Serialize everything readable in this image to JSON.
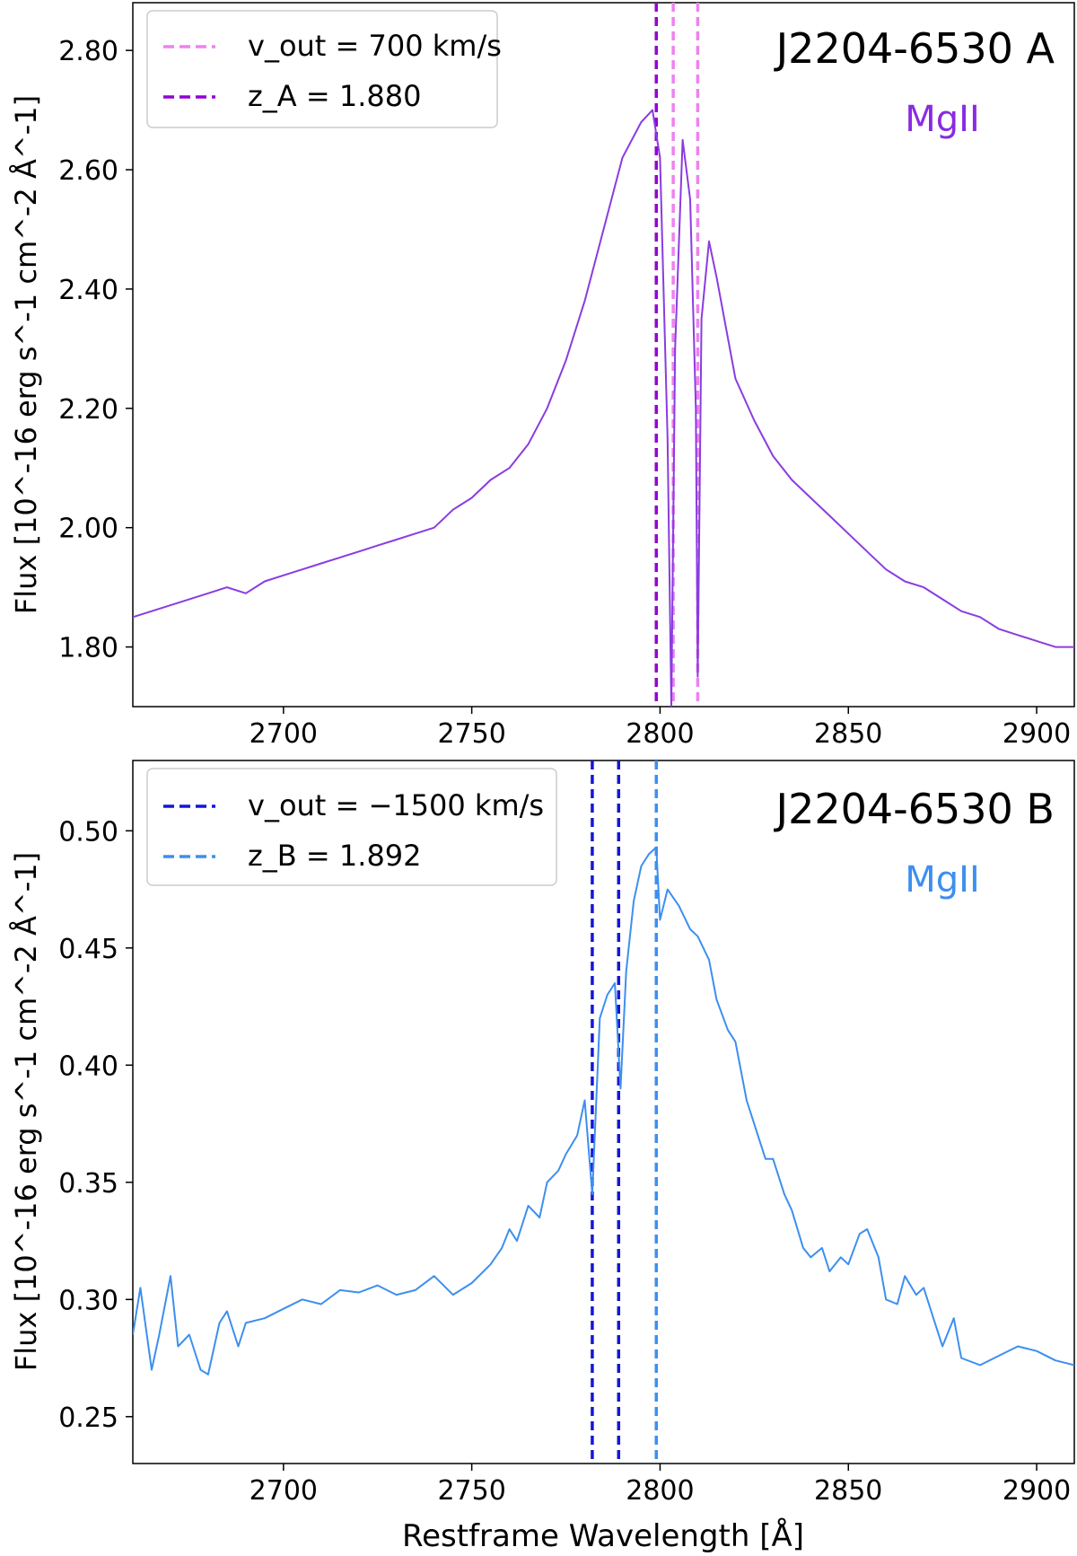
{
  "chart_data": [
    {
      "type": "line",
      "title": "J2204-6530 A",
      "annotation": "MgII",
      "ylabel": "Flux [10^-16 erg s^-1 cm^-2 Å^-1]",
      "xlabel": "",
      "xlim": [
        2660,
        2910
      ],
      "ylim": [
        1.7,
        2.88
      ],
      "x_ticks": [
        2700,
        2750,
        2800,
        2850,
        2900
      ],
      "x_tick_labels": [
        "2700",
        "2750",
        "2800",
        "2850",
        "2900"
      ],
      "y_ticks": [
        1.8,
        2.0,
        2.2,
        2.4,
        2.6,
        2.8
      ],
      "y_tick_labels": [
        "1.80",
        "2.00",
        "2.20",
        "2.40",
        "2.60",
        "2.80"
      ],
      "legend_position": "top-left",
      "colors": {
        "spectrum": "#8a3ce0",
        "annotation": "#8a2be2",
        "vout": "#ee82ee",
        "z": "#9400d3"
      },
      "legend": [
        {
          "label": "v_out = 700 km/s",
          "color": "#ee82ee"
        },
        {
          "label": "z_A = 1.880",
          "color": "#9400d3"
        }
      ],
      "vlines": [
        {
          "x": 2799,
          "color": "#9400d3"
        },
        {
          "x": 2803.5,
          "color": "#ee82ee"
        },
        {
          "x": 2810,
          "color": "#ee82ee"
        }
      ],
      "series": [
        {
          "x": [
            2660,
            2665,
            2670,
            2675,
            2680,
            2685,
            2690,
            2695,
            2700,
            2705,
            2710,
            2715,
            2720,
            2725,
            2730,
            2735,
            2740,
            2745,
            2750,
            2755,
            2760,
            2765,
            2770,
            2775,
            2780,
            2785,
            2790,
            2795,
            2798,
            2800,
            2802,
            2803,
            2804,
            2806,
            2808,
            2809.5,
            2810,
            2811,
            2813,
            2815,
            2820,
            2825,
            2830,
            2835,
            2840,
            2845,
            2850,
            2855,
            2860,
            2865,
            2870,
            2875,
            2880,
            2885,
            2890,
            2895,
            2900,
            2905,
            2910
          ],
          "values": [
            1.85,
            1.86,
            1.87,
            1.88,
            1.89,
            1.9,
            1.89,
            1.91,
            1.92,
            1.93,
            1.94,
            1.95,
            1.96,
            1.97,
            1.98,
            1.99,
            2.0,
            2.03,
            2.05,
            2.08,
            2.1,
            2.14,
            2.2,
            2.28,
            2.38,
            2.5,
            2.62,
            2.68,
            2.7,
            2.62,
            2.15,
            1.7,
            2.3,
            2.65,
            2.55,
            2.2,
            1.75,
            2.35,
            2.48,
            2.42,
            2.25,
            2.18,
            2.12,
            2.08,
            2.05,
            2.02,
            1.99,
            1.96,
            1.93,
            1.91,
            1.9,
            1.88,
            1.86,
            1.85,
            1.83,
            1.82,
            1.81,
            1.8,
            1.8
          ]
        }
      ]
    },
    {
      "type": "line",
      "title": "J2204-6530 B",
      "annotation": "MgII",
      "ylabel": "Flux [10^-16 erg s^-1 cm^-2 Å^-1]",
      "xlabel": "Restframe Wavelength [Å]",
      "xlim": [
        2660,
        2910
      ],
      "ylim": [
        0.23,
        0.53
      ],
      "x_ticks": [
        2700,
        2750,
        2800,
        2850,
        2900
      ],
      "x_tick_labels": [
        "2700",
        "2750",
        "2800",
        "2850",
        "2900"
      ],
      "y_ticks": [
        0.25,
        0.3,
        0.35,
        0.4,
        0.45,
        0.5
      ],
      "y_tick_labels": [
        "0.25",
        "0.30",
        "0.35",
        "0.40",
        "0.45",
        "0.50"
      ],
      "legend_position": "top-left",
      "colors": {
        "spectrum": "#3d8fef",
        "annotation": "#3d8fef",
        "vout": "#1515d6",
        "z": "#3d8fef"
      },
      "legend": [
        {
          "label": "v_out = −1500 km/s",
          "color": "#1515d6"
        },
        {
          "label": "z_B = 1.892",
          "color": "#3d8fef"
        }
      ],
      "vlines": [
        {
          "x": 2782,
          "color": "#1515d6"
        },
        {
          "x": 2789,
          "color": "#1515d6"
        },
        {
          "x": 2799,
          "color": "#3d8fef"
        }
      ],
      "series": [
        {
          "x": [
            2660,
            2662,
            2665,
            2667,
            2670,
            2672,
            2675,
            2678,
            2680,
            2683,
            2685,
            2688,
            2690,
            2695,
            2700,
            2705,
            2710,
            2715,
            2720,
            2725,
            2730,
            2735,
            2740,
            2745,
            2750,
            2755,
            2758,
            2760,
            2762,
            2765,
            2768,
            2770,
            2773,
            2775,
            2778,
            2780,
            2782,
            2784,
            2786,
            2788,
            2789.5,
            2791,
            2793,
            2795,
            2797,
            2799,
            2800,
            2802,
            2805,
            2808,
            2810,
            2813,
            2815,
            2818,
            2820,
            2823,
            2825,
            2828,
            2830,
            2833,
            2835,
            2838,
            2840,
            2843,
            2845,
            2848,
            2850,
            2853,
            2855,
            2858,
            2860,
            2863,
            2865,
            2868,
            2870,
            2873,
            2875,
            2878,
            2880,
            2885,
            2890,
            2895,
            2900,
            2905,
            2910
          ],
          "values": [
            0.285,
            0.305,
            0.27,
            0.285,
            0.31,
            0.28,
            0.285,
            0.27,
            0.268,
            0.29,
            0.295,
            0.28,
            0.29,
            0.292,
            0.296,
            0.3,
            0.298,
            0.304,
            0.303,
            0.306,
            0.302,
            0.304,
            0.31,
            0.302,
            0.307,
            0.315,
            0.322,
            0.33,
            0.325,
            0.34,
            0.335,
            0.35,
            0.355,
            0.362,
            0.37,
            0.385,
            0.345,
            0.42,
            0.43,
            0.435,
            0.39,
            0.44,
            0.47,
            0.485,
            0.49,
            0.493,
            0.462,
            0.475,
            0.468,
            0.458,
            0.455,
            0.445,
            0.428,
            0.415,
            0.41,
            0.385,
            0.375,
            0.36,
            0.36,
            0.345,
            0.338,
            0.322,
            0.318,
            0.322,
            0.312,
            0.318,
            0.315,
            0.328,
            0.33,
            0.318,
            0.3,
            0.298,
            0.31,
            0.302,
            0.305,
            0.29,
            0.28,
            0.292,
            0.275,
            0.272,
            0.276,
            0.28,
            0.278,
            0.274,
            0.272
          ]
        }
      ]
    }
  ]
}
